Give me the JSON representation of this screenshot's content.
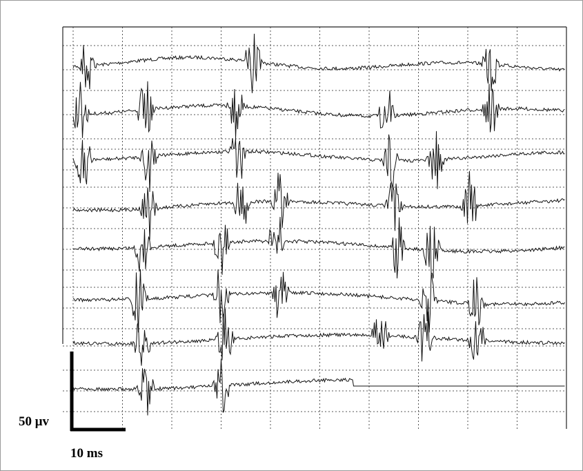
{
  "scale_bar": {
    "vertical_label": "50 μv",
    "horizontal_label": "10 ms"
  }
}
